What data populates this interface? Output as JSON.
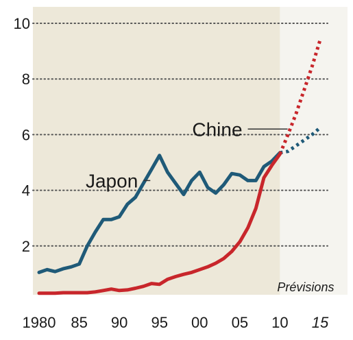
{
  "chart_data": {
    "type": "line",
    "xlim": [
      1980,
      2016
    ],
    "ylim": [
      0,
      10.4
    ],
    "y_ticks": [
      {
        "value": 2,
        "label": "2"
      },
      {
        "value": 4,
        "label": "4"
      },
      {
        "value": 6,
        "label": "6"
      },
      {
        "value": 8,
        "label": "8"
      },
      {
        "value": 10,
        "label": "10"
      }
    ],
    "x_ticks": [
      {
        "value": 1980,
        "label": "1980",
        "forecast": false
      },
      {
        "value": 1985,
        "label": "85",
        "forecast": false
      },
      {
        "value": 1990,
        "label": "90",
        "forecast": false
      },
      {
        "value": 1995,
        "label": "95",
        "forecast": false
      },
      {
        "value": 2000,
        "label": "00",
        "forecast": false
      },
      {
        "value": 2005,
        "label": "05",
        "forecast": false
      },
      {
        "value": 2010,
        "label": "10",
        "forecast": false
      },
      {
        "value": 2015,
        "label": "15",
        "forecast": true
      }
    ],
    "forecast_start": 2010,
    "forecast_label": "Prévisions",
    "grid": "horizontal dotted",
    "colors": {
      "historical_bg": "#ede8d9",
      "forecast_bg": "#f5f4ef",
      "japon": "#1f5a78",
      "chine": "#c8262b",
      "grid": "#555555"
    },
    "series": [
      {
        "name": "Japon",
        "key": "japon",
        "label_at": [
          1993,
          4.35
        ],
        "values": [
          [
            1980,
            1.05
          ],
          [
            1981,
            1.15
          ],
          [
            1982,
            1.08
          ],
          [
            1983,
            1.18
          ],
          [
            1984,
            1.25
          ],
          [
            1985,
            1.35
          ],
          [
            1986,
            2.0
          ],
          [
            1987,
            2.5
          ],
          [
            1988,
            2.95
          ],
          [
            1989,
            2.95
          ],
          [
            1990,
            3.05
          ],
          [
            1991,
            3.5
          ],
          [
            1992,
            3.75
          ],
          [
            1993,
            4.25
          ],
          [
            1994,
            4.75
          ],
          [
            1995,
            5.25
          ],
          [
            1996,
            4.65
          ],
          [
            1997,
            4.25
          ],
          [
            1998,
            3.85
          ],
          [
            1999,
            4.35
          ],
          [
            2000,
            4.65
          ],
          [
            2001,
            4.1
          ],
          [
            2002,
            3.9
          ],
          [
            2003,
            4.2
          ],
          [
            2004,
            4.6
          ],
          [
            2005,
            4.55
          ],
          [
            2006,
            4.35
          ],
          [
            2007,
            4.35
          ],
          [
            2008,
            4.85
          ],
          [
            2009,
            5.05
          ],
          [
            2010,
            5.35
          ]
        ],
        "forecast": [
          [
            2010,
            5.35
          ],
          [
            2011,
            5.4
          ],
          [
            2012,
            5.6
          ],
          [
            2013,
            5.8
          ],
          [
            2014,
            6.0
          ],
          [
            2015,
            6.25
          ]
        ]
      },
      {
        "name": "Chine",
        "key": "chine",
        "label_at": [
          2006,
          6.2
        ],
        "values": [
          [
            1980,
            0.3
          ],
          [
            1981,
            0.3
          ],
          [
            1982,
            0.3
          ],
          [
            1983,
            0.32
          ],
          [
            1984,
            0.32
          ],
          [
            1985,
            0.32
          ],
          [
            1986,
            0.32
          ],
          [
            1987,
            0.35
          ],
          [
            1988,
            0.4
          ],
          [
            1989,
            0.45
          ],
          [
            1990,
            0.4
          ],
          [
            1991,
            0.42
          ],
          [
            1992,
            0.48
          ],
          [
            1993,
            0.55
          ],
          [
            1994,
            0.65
          ],
          [
            1995,
            0.62
          ],
          [
            1996,
            0.8
          ],
          [
            1997,
            0.9
          ],
          [
            1998,
            0.98
          ],
          [
            1999,
            1.05
          ],
          [
            2000,
            1.15
          ],
          [
            2001,
            1.25
          ],
          [
            2002,
            1.38
          ],
          [
            2003,
            1.55
          ],
          [
            2004,
            1.8
          ],
          [
            2005,
            2.15
          ],
          [
            2006,
            2.65
          ],
          [
            2007,
            3.35
          ],
          [
            2008,
            4.45
          ],
          [
            2009,
            4.9
          ],
          [
            2010,
            5.3
          ]
        ],
        "forecast": [
          [
            2010,
            5.3
          ],
          [
            2011,
            6.0
          ],
          [
            2012,
            6.75
          ],
          [
            2013,
            7.6
          ],
          [
            2014,
            8.45
          ],
          [
            2015,
            9.4
          ]
        ]
      }
    ]
  }
}
